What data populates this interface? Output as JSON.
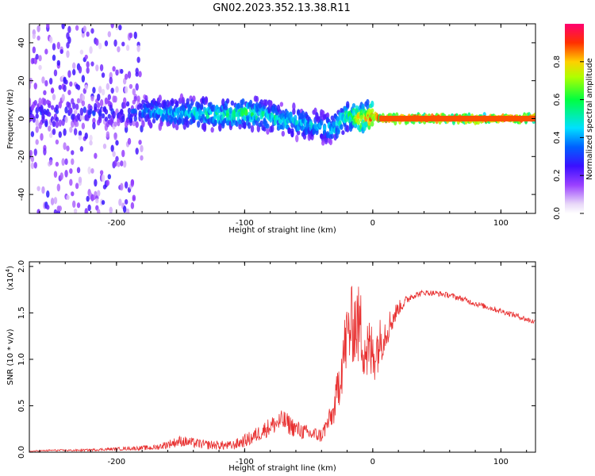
{
  "figure_title": "GN02.2023.352.13.38.R11",
  "colors": {
    "snr_line": "#e83030",
    "background": "#ffffff",
    "axis": "#000000"
  },
  "chart_data": [
    {
      "type": "heatmap",
      "title": "",
      "xlabel": "Height of straight line (km)",
      "ylabel": "Frequency (Hz)",
      "xlim": [
        -268,
        127
      ],
      "ylim": [
        -50,
        50
      ],
      "x_ticks": [
        -200,
        -100,
        0,
        100
      ],
      "x_tick_labels": [
        "-200",
        "-100",
        "0",
        "100"
      ],
      "y_ticks": [
        -40,
        -20,
        0,
        20,
        40
      ],
      "y_tick_labels": [
        "-40",
        "-20",
        "0",
        "20",
        "40"
      ],
      "colorbar": {
        "label": "Normalized spectral amplitude",
        "range": [
          0,
          1
        ],
        "ticks": [
          0.0,
          0.2,
          0.4,
          0.6,
          0.8
        ],
        "tick_labels": [
          "0.0",
          "0.2",
          "0.4",
          "0.6",
          "0.8"
        ]
      },
      "description_points": {
        "ridge": {
          "x": [
            -200,
            -180,
            -160,
            -140,
            -120,
            -100,
            -80,
            -60,
            -45,
            -30,
            -20,
            -10,
            0,
            10,
            127
          ],
          "y": [
            3,
            4,
            3,
            3,
            2,
            3,
            1,
            -2,
            -4,
            -5,
            2,
            0,
            1,
            0,
            0
          ]
        },
        "peak_level": [
          0.3,
          0.4,
          0.45,
          0.5,
          0.55,
          0.6,
          0.55,
          0.5,
          0.45,
          0.5,
          0.6,
          0.85,
          0.95,
          0.95,
          0.9
        ]
      },
      "grid": false
    },
    {
      "type": "line",
      "title": "",
      "xlabel": "Height of straight line (km)",
      "ylabel": "SNR (10 * v/v)",
      "y_multiplier": "(x10",
      "y_multiplier_exp": "4",
      "y_multiplier_close": ")",
      "xlim": [
        -268,
        127
      ],
      "ylim": [
        0,
        2.05
      ],
      "x_ticks": [
        -200,
        -100,
        0,
        100
      ],
      "x_tick_labels": [
        "-200",
        "-100",
        "0",
        "100"
      ],
      "y_ticks": [
        0,
        0.5,
        1.0,
        1.5,
        2.0
      ],
      "y_tick_labels": [
        "0.0",
        "0.5",
        "1.0",
        "1.5",
        "2.0"
      ],
      "series": [
        {
          "x": [
            -268,
            -250,
            -230,
            -210,
            -190,
            -170,
            -150,
            -130,
            -110,
            -95,
            -80,
            -70,
            -60,
            -50,
            -40,
            -30,
            -25,
            -20,
            -15,
            -10,
            -5,
            0,
            10,
            20,
            30,
            40,
            50,
            60,
            70,
            80,
            90,
            100,
            110,
            120,
            127
          ],
          "y": [
            0.01,
            0.02,
            0.02,
            0.03,
            0.04,
            0.05,
            0.12,
            0.08,
            0.07,
            0.15,
            0.28,
            0.34,
            0.25,
            0.2,
            0.18,
            0.45,
            0.9,
            1.25,
            1.4,
            1.35,
            1.1,
            1.05,
            1.3,
            1.55,
            1.68,
            1.72,
            1.71,
            1.69,
            1.65,
            1.6,
            1.56,
            1.52,
            1.48,
            1.43,
            1.4
          ],
          "noise": [
            0.005,
            0.01,
            0.01,
            0.015,
            0.02,
            0.03,
            0.06,
            0.05,
            0.05,
            0.08,
            0.1,
            0.12,
            0.1,
            0.08,
            0.08,
            0.15,
            0.35,
            0.4,
            0.45,
            0.45,
            0.4,
            0.35,
            0.2,
            0.08,
            0.04,
            0.03,
            0.03,
            0.03,
            0.03,
            0.03,
            0.03,
            0.03,
            0.03,
            0.03,
            0.03
          ]
        }
      ],
      "grid": false
    }
  ]
}
